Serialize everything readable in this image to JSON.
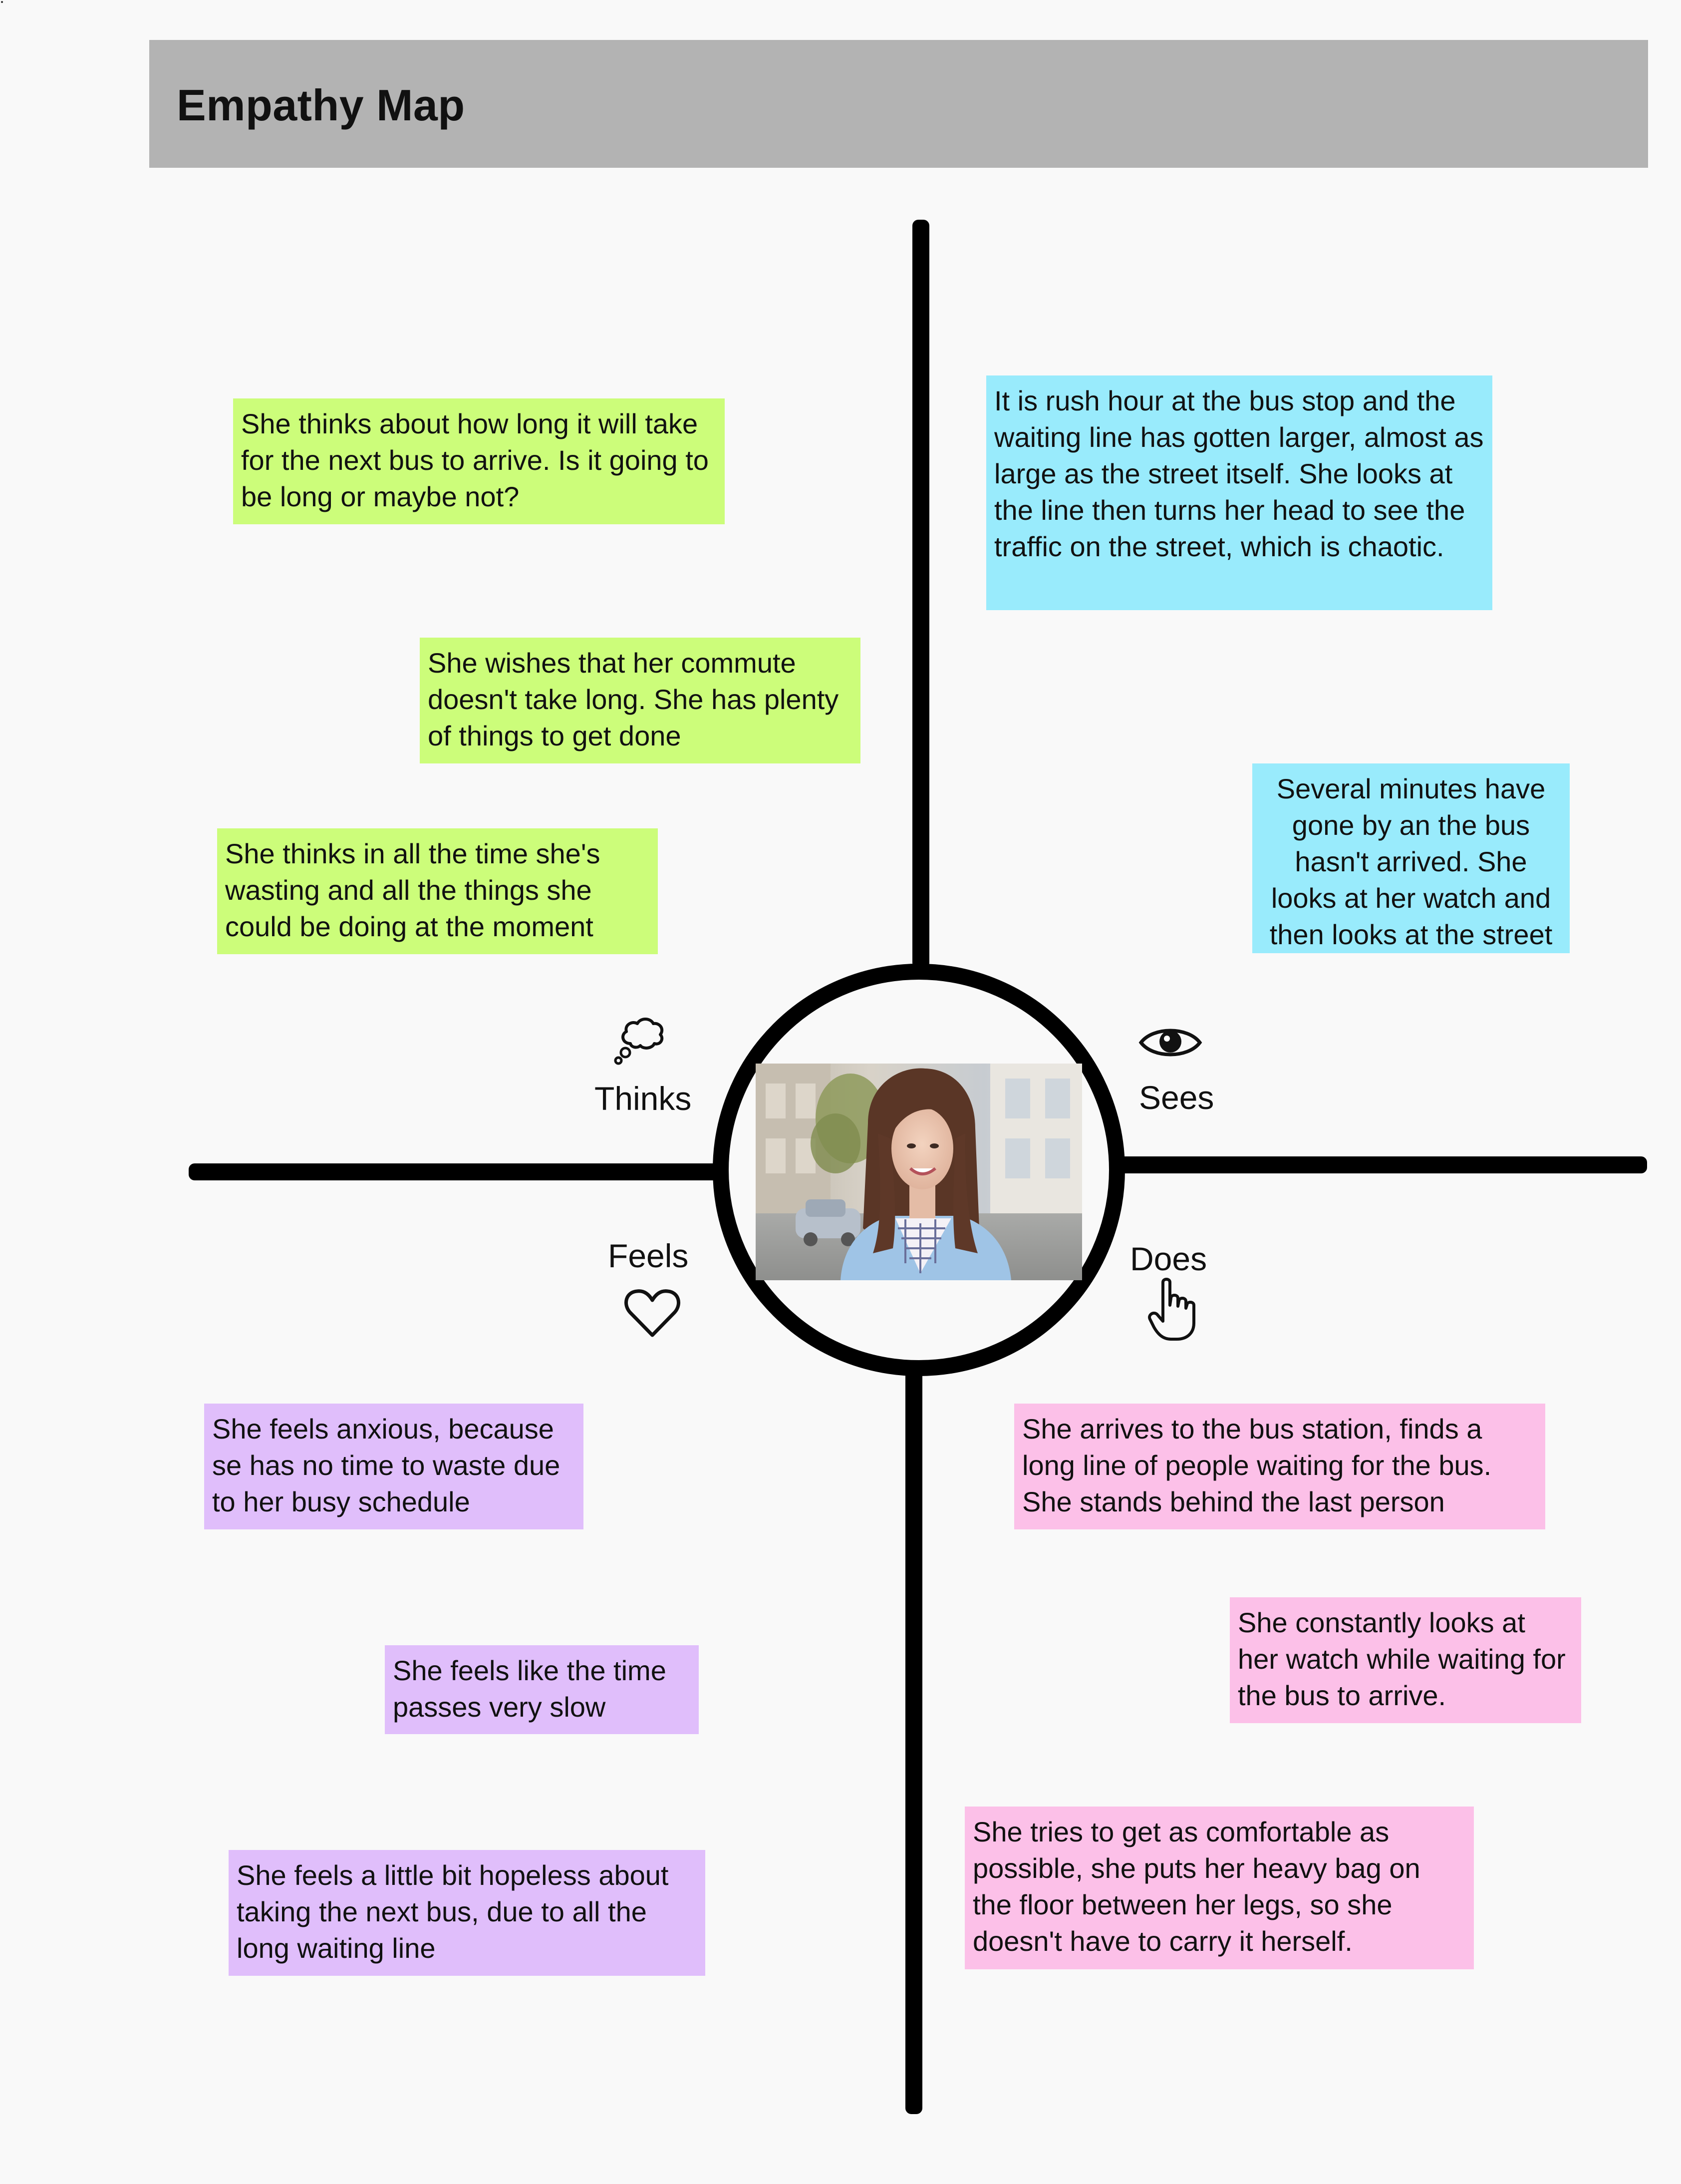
{
  "title": "Empathy Map",
  "quadrants": {
    "thinks": {
      "label": "Thinks",
      "icon": "thought-bubble-icon",
      "notes": [
        "She thinks about how long it will take for the next bus to arrive. Is it going to be long or maybe not?",
        "She wishes that her commute doesn't take long. She has plenty of things to get done",
        "She thinks in all the time she's wasting and all the things she could be doing at the moment"
      ]
    },
    "sees": {
      "label": "Sees",
      "icon": "eye-icon",
      "notes": [
        "It is rush hour at the bus stop and the waiting line has gotten larger, almost as large as the street itself. She looks at the line then turns her head to see the traffic on the street, which is chaotic.",
        "Several minutes have gone by an the bus hasn't arrived. She looks at her watch and then looks at the street"
      ]
    },
    "feels": {
      "label": "Feels",
      "icon": "heart-icon",
      "notes": [
        "She feels anxious, because se has no time to waste due to her busy schedule",
        "She feels like the time passes very slow",
        "She feels a little bit hopeless about taking the next bus, due to all the long waiting line"
      ]
    },
    "does": {
      "label": "Does",
      "icon": "pointing-hand-icon",
      "notes": [
        "She arrives to  the bus station, finds a long line of people waiting for the bus. She stands behind the last person",
        "She constantly looks at her watch while waiting for the bus to arrive.",
        "She tries to get as comfortable as possible, she puts her heavy bag on the floor between her legs, so she doesn't have to carry it herself."
      ]
    }
  },
  "colors": {
    "thinks_note": "#ccfd7a",
    "sees_note": "#99ebfc",
    "feels_note": "#e0befb",
    "does_note": "#fcc0e8",
    "header": "#b3b3b3",
    "axis": "#000000"
  },
  "persona_image": "woman-portrait-photo"
}
